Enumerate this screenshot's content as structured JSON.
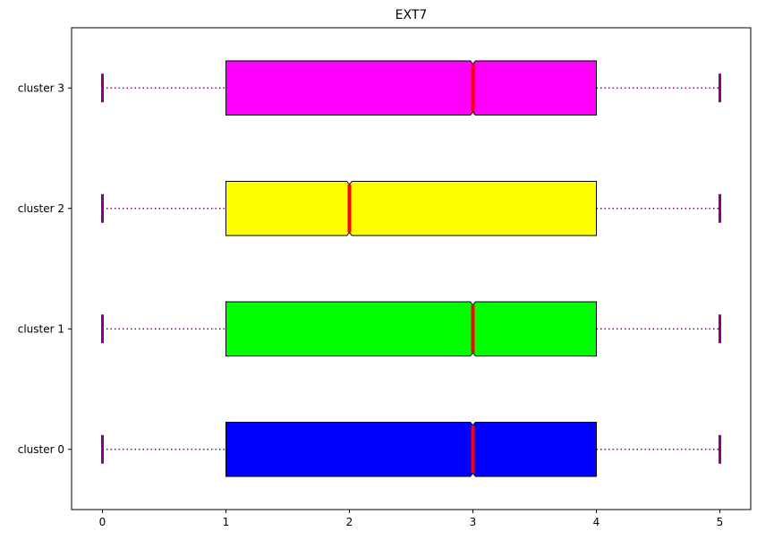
{
  "chart_data": {
    "type": "boxplot",
    "orientation": "horizontal",
    "title": "EXT7",
    "xlabel": "",
    "ylabel": "",
    "xlim": [
      -0.25,
      5.25
    ],
    "xticks": [
      0,
      1,
      2,
      3,
      4,
      5
    ],
    "grid": false,
    "notched": true,
    "categories": [
      "cluster 0",
      "cluster 1",
      "cluster 2",
      "cluster 3"
    ],
    "series": [
      {
        "category": "cluster 0",
        "whisker_low": 0,
        "q1": 1,
        "median": 3,
        "q3": 4,
        "whisker_high": 5,
        "notch_low": 2.98,
        "notch_high": 3.02,
        "color": "#0000ff"
      },
      {
        "category": "cluster 1",
        "whisker_low": 0,
        "q1": 1,
        "median": 3,
        "q3": 4,
        "whisker_high": 5,
        "notch_low": 2.98,
        "notch_high": 3.02,
        "color": "#00ff00"
      },
      {
        "category": "cluster 2",
        "whisker_low": 0,
        "q1": 1,
        "median": 2,
        "q3": 4,
        "whisker_high": 5,
        "notch_low": 1.98,
        "notch_high": 2.02,
        "color": "#ffff00"
      },
      {
        "category": "cluster 3",
        "whisker_low": 0,
        "q1": 1,
        "median": 3,
        "q3": 4,
        "whisker_high": 5,
        "notch_low": 2.98,
        "notch_high": 3.02,
        "color": "#ff00ff"
      }
    ],
    "whisker_color": "#8b008b",
    "median_color": "#ff0000",
    "box_edge_color": "#000000"
  }
}
